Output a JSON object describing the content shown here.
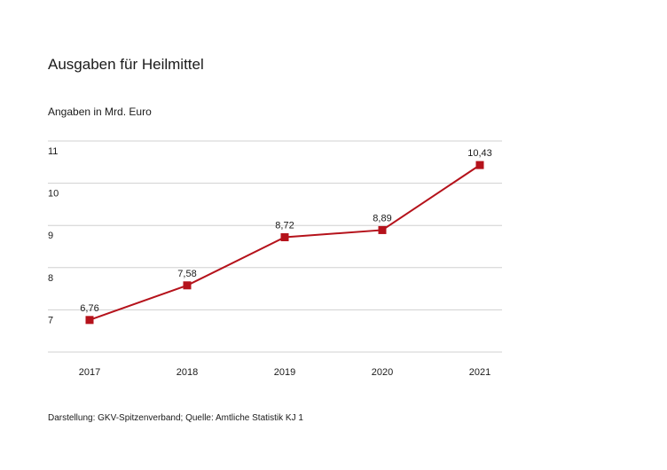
{
  "title": "Ausgaben für Heilmittel",
  "subtitle": "Angaben in Mrd. Euro",
  "source": "Darstellung: GKV-Spitzenverband; Quelle: Amtliche Statistik KJ 1",
  "colors": {
    "line": "#b5121b",
    "grid": "#d0d0d0"
  },
  "chart_data": {
    "type": "line",
    "title": "Ausgaben für Heilmittel",
    "ylabel": "Angaben in Mrd. Euro",
    "xlabel": "",
    "categories": [
      "2017",
      "2018",
      "2019",
      "2020",
      "2021"
    ],
    "series": [
      {
        "values": [
          6.76,
          7.58,
          8.72,
          8.89,
          10.43
        ],
        "labels": [
          "6,76",
          "7,58",
          "8,72",
          "8,89",
          "10,43"
        ]
      }
    ],
    "yticks": [
      "7",
      "8",
      "9",
      "10",
      "11"
    ],
    "ytick_values": [
      7,
      8,
      9,
      10,
      11
    ],
    "ylim": [
      6,
      11
    ],
    "grid": true,
    "legend": "none"
  }
}
